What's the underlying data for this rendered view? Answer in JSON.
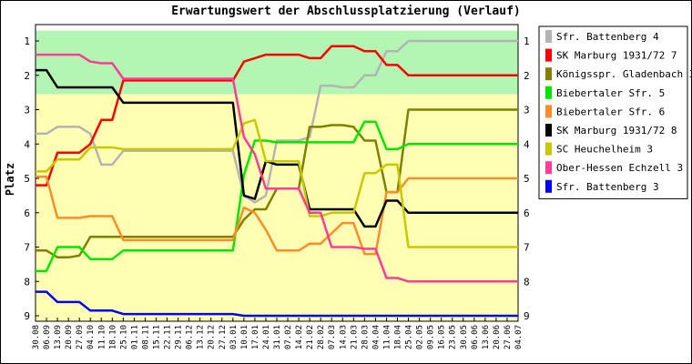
{
  "chart_data": {
    "type": "line",
    "title": "Erwartungswert der Abschlussplatzierung (Verlauf)",
    "ylabel": "Platz",
    "xlabel": "",
    "ylim": [
      1,
      9
    ],
    "y_ticks": [
      1,
      2,
      3,
      4,
      5,
      6,
      7,
      8,
      9
    ],
    "y_axis_inverted": true,
    "bands": [
      {
        "from": 0.7,
        "to": 2.55,
        "color": "#b3f5b3"
      },
      {
        "from": 2.55,
        "to": 9.35,
        "color": "#ffffb3"
      }
    ],
    "x": [
      "30.08",
      "06.09",
      "13.09",
      "20.09",
      "27.09",
      "04.10",
      "11.10",
      "18.10",
      "25.10",
      "01.11",
      "08.11",
      "15.11",
      "22.11",
      "29.11",
      "06.12",
      "13.12",
      "20.12",
      "27.12",
      "03.01",
      "10.01",
      "17.01",
      "24.01",
      "31.01",
      "07.02",
      "14.02",
      "21.02",
      "28.02",
      "07.03",
      "14.03",
      "21.03",
      "28.03",
      "04.04",
      "11.04",
      "18.04",
      "25.04",
      "02.05",
      "09.05",
      "16.05",
      "23.05",
      "30.05",
      "06.06",
      "13.06",
      "20.06",
      "27.06",
      "04.07"
    ],
    "legend_position": "right",
    "series": [
      {
        "name": "Sfr. Battenberg 4",
        "color": "#b4b4b4",
        "values": [
          3.7,
          3.7,
          3.5,
          3.5,
          3.5,
          3.7,
          4.6,
          4.6,
          4.2,
          4.2,
          4.2,
          4.2,
          4.2,
          4.2,
          4.2,
          4.2,
          4.2,
          4.2,
          4.2,
          5.5,
          5.7,
          5.5,
          3.9,
          3.9,
          3.9,
          3.8,
          2.3,
          2.3,
          2.35,
          2.35,
          2.0,
          2.0,
          1.3,
          1.3,
          1.0,
          1.0,
          1.0,
          1.0,
          1.0,
          1.0,
          1.0,
          1.0,
          1.0,
          1.0,
          1.0
        ]
      },
      {
        "name": "SK Marburg 1931/72 7",
        "color": "#ff0000",
        "values": [
          5.2,
          5.2,
          4.25,
          4.25,
          4.25,
          4.0,
          3.3,
          3.3,
          2.15,
          2.15,
          2.15,
          2.15,
          2.15,
          2.15,
          2.15,
          2.15,
          2.15,
          2.15,
          2.15,
          1.6,
          1.5,
          1.4,
          1.4,
          1.4,
          1.4,
          1.5,
          1.5,
          1.15,
          1.15,
          1.15,
          1.3,
          1.3,
          1.7,
          1.7,
          2.0,
          2.0,
          2.0,
          2.0,
          2.0,
          2.0,
          2.0,
          2.0,
          2.0,
          2.0,
          2.0
        ]
      },
      {
        "name": "Königsspr. Gladenbach 3",
        "color": "#808000",
        "values": [
          7.1,
          7.1,
          7.3,
          7.3,
          7.25,
          6.7,
          6.7,
          6.7,
          6.7,
          6.7,
          6.7,
          6.7,
          6.7,
          6.7,
          6.7,
          6.7,
          6.7,
          6.7,
          6.7,
          6.2,
          5.9,
          5.9,
          5.3,
          5.3,
          5.3,
          3.5,
          3.5,
          3.45,
          3.45,
          3.5,
          3.9,
          3.9,
          5.4,
          5.4,
          3.0,
          3.0,
          3.0,
          3.0,
          3.0,
          3.0,
          3.0,
          3.0,
          3.0,
          3.0,
          3.0
        ]
      },
      {
        "name": "Biebertaler Sfr. 5",
        "color": "#00e600",
        "values": [
          7.7,
          7.7,
          7.0,
          7.0,
          7.0,
          7.35,
          7.35,
          7.35,
          7.1,
          7.1,
          7.1,
          7.1,
          7.1,
          7.1,
          7.1,
          7.1,
          7.1,
          7.1,
          7.1,
          4.9,
          3.9,
          3.9,
          3.95,
          3.95,
          3.95,
          3.95,
          3.95,
          3.95,
          3.95,
          3.95,
          3.35,
          3.35,
          4.15,
          4.15,
          4.0,
          4.0,
          4.0,
          4.0,
          4.0,
          4.0,
          4.0,
          4.0,
          4.0,
          4.0,
          4.0
        ]
      },
      {
        "name": "Biebertaler Sfr. 6",
        "color": "#ff8c2a",
        "values": [
          4.95,
          4.95,
          6.15,
          6.15,
          6.15,
          6.1,
          6.1,
          6.1,
          6.8,
          6.8,
          6.8,
          6.8,
          6.8,
          6.8,
          6.8,
          6.8,
          6.8,
          6.8,
          6.8,
          5.85,
          6.0,
          6.5,
          7.1,
          7.1,
          7.1,
          6.9,
          6.9,
          6.6,
          6.3,
          6.3,
          7.2,
          7.2,
          5.4,
          5.4,
          5.0,
          5.0,
          5.0,
          5.0,
          5.0,
          5.0,
          5.0,
          5.0,
          5.0,
          5.0,
          5.0
        ]
      },
      {
        "name": "SK Marburg 1931/72 8",
        "color": "#000000",
        "values": [
          1.85,
          1.85,
          2.35,
          2.35,
          2.35,
          2.35,
          2.35,
          2.35,
          2.8,
          2.8,
          2.8,
          2.8,
          2.8,
          2.8,
          2.8,
          2.8,
          2.8,
          2.8,
          2.8,
          5.5,
          5.6,
          4.5,
          4.6,
          4.6,
          4.6,
          5.9,
          5.9,
          5.9,
          5.9,
          5.9,
          6.4,
          6.4,
          5.65,
          5.65,
          6.0,
          6.0,
          6.0,
          6.0,
          6.0,
          6.0,
          6.0,
          6.0,
          6.0,
          6.0,
          6.0
        ]
      },
      {
        "name": "SC Heuchelheim 3",
        "color": "#c8c800",
        "values": [
          4.8,
          4.8,
          4.45,
          4.45,
          4.45,
          4.1,
          4.1,
          4.1,
          4.15,
          4.15,
          4.15,
          4.15,
          4.15,
          4.15,
          4.15,
          4.15,
          4.15,
          4.15,
          4.15,
          3.4,
          3.3,
          4.5,
          4.5,
          4.5,
          4.5,
          6.1,
          6.1,
          6.0,
          6.0,
          6.0,
          4.85,
          4.85,
          4.6,
          4.6,
          7.0,
          7.0,
          7.0,
          7.0,
          7.0,
          7.0,
          7.0,
          7.0,
          7.0,
          7.0,
          7.0
        ]
      },
      {
        "name": "Ober-Hessen Echzell 3",
        "color": "#ff3c96",
        "values": [
          1.4,
          1.4,
          1.4,
          1.4,
          1.4,
          1.6,
          1.65,
          1.65,
          2.1,
          2.1,
          2.1,
          2.1,
          2.1,
          2.1,
          2.1,
          2.1,
          2.1,
          2.1,
          2.1,
          3.8,
          4.3,
          5.3,
          5.3,
          5.3,
          5.3,
          6.0,
          6.0,
          7.0,
          7.0,
          7.0,
          7.05,
          7.05,
          7.9,
          7.9,
          8.0,
          8.0,
          8.0,
          8.0,
          8.0,
          8.0,
          8.0,
          8.0,
          8.0,
          8.0,
          8.0
        ]
      },
      {
        "name": "Sfr. Battenberg 3",
        "color": "#0000ff",
        "values": [
          8.3,
          8.3,
          8.6,
          8.6,
          8.6,
          8.85,
          8.85,
          8.85,
          8.95,
          8.95,
          8.95,
          8.95,
          8.95,
          8.95,
          8.95,
          8.95,
          8.95,
          8.95,
          8.95,
          9.0,
          9.0,
          9.0,
          9.0,
          9.0,
          9.0,
          9.0,
          9.0,
          9.0,
          9.0,
          9.0,
          9.0,
          9.0,
          9.0,
          9.0,
          9.0,
          9.0,
          9.0,
          9.0,
          9.0,
          9.0,
          9.0,
          9.0,
          9.0,
          9.0,
          9.0
        ]
      }
    ]
  }
}
